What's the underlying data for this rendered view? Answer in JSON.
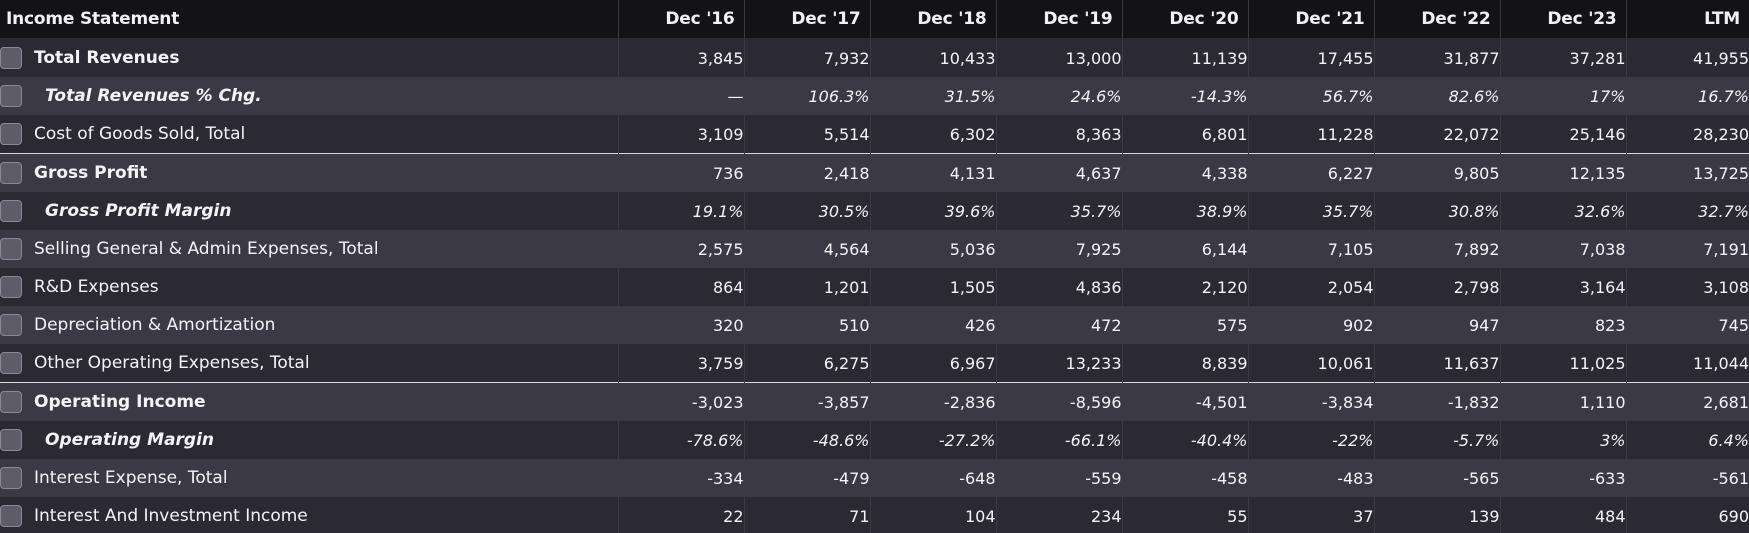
{
  "table": {
    "header": {
      "label": "Income Statement",
      "periods": [
        "Dec '16",
        "Dec '17",
        "Dec '18",
        "Dec '19",
        "Dec '20",
        "Dec '21",
        "Dec '22",
        "Dec '23",
        "LTM"
      ]
    },
    "rows": [
      {
        "label": "Total Revenues",
        "style": "bold",
        "values": [
          "3,845",
          "7,932",
          "10,433",
          "13,000",
          "11,139",
          "17,455",
          "31,877",
          "37,281",
          "41,955"
        ]
      },
      {
        "label": "Total Revenues % Chg.",
        "style": "sub",
        "values": [
          "—",
          "106.3%",
          "31.5%",
          "24.6%",
          "-14.3%",
          "56.7%",
          "82.6%",
          "17%",
          "16.7%"
        ]
      },
      {
        "label": "Cost of Goods Sold, Total",
        "style": "normal",
        "values": [
          "3,109",
          "5,514",
          "6,302",
          "8,363",
          "6,801",
          "11,228",
          "22,072",
          "25,146",
          "28,230"
        ]
      },
      {
        "label": "Gross Profit",
        "style": "bold",
        "values": [
          "736",
          "2,418",
          "4,131",
          "4,637",
          "4,338",
          "6,227",
          "9,805",
          "12,135",
          "13,725"
        ]
      },
      {
        "label": "Gross Profit Margin",
        "style": "sub",
        "values": [
          "19.1%",
          "30.5%",
          "39.6%",
          "35.7%",
          "38.9%",
          "35.7%",
          "30.8%",
          "32.6%",
          "32.7%"
        ]
      },
      {
        "label": "Selling General & Admin Expenses, Total",
        "style": "normal",
        "values": [
          "2,575",
          "4,564",
          "5,036",
          "7,925",
          "6,144",
          "7,105",
          "7,892",
          "7,038",
          "7,191"
        ]
      },
      {
        "label": "R&D Expenses",
        "style": "normal",
        "values": [
          "864",
          "1,201",
          "1,505",
          "4,836",
          "2,120",
          "2,054",
          "2,798",
          "3,164",
          "3,108"
        ]
      },
      {
        "label": "Depreciation & Amortization",
        "style": "normal",
        "values": [
          "320",
          "510",
          "426",
          "472",
          "575",
          "902",
          "947",
          "823",
          "745"
        ]
      },
      {
        "label": "Other Operating Expenses, Total",
        "style": "normal",
        "values": [
          "3,759",
          "6,275",
          "6,967",
          "13,233",
          "8,839",
          "10,061",
          "11,637",
          "11,025",
          "11,044"
        ]
      },
      {
        "label": "Operating Income",
        "style": "bold",
        "values": [
          "-3,023",
          "-3,857",
          "-2,836",
          "-8,596",
          "-4,501",
          "-3,834",
          "-1,832",
          "1,110",
          "2,681"
        ]
      },
      {
        "label": "Operating Margin",
        "style": "sub",
        "values": [
          "-78.6%",
          "-48.6%",
          "-27.2%",
          "-66.1%",
          "-40.4%",
          "-22%",
          "-5.7%",
          "3%",
          "6.4%"
        ]
      },
      {
        "label": "Interest Expense, Total",
        "style": "normal",
        "values": [
          "-334",
          "-479",
          "-648",
          "-559",
          "-458",
          "-483",
          "-565",
          "-633",
          "-561"
        ]
      },
      {
        "label": "Interest And Investment Income",
        "style": "normal",
        "values": [
          "22",
          "71",
          "104",
          "234",
          "55",
          "37",
          "139",
          "484",
          "690"
        ]
      }
    ]
  }
}
